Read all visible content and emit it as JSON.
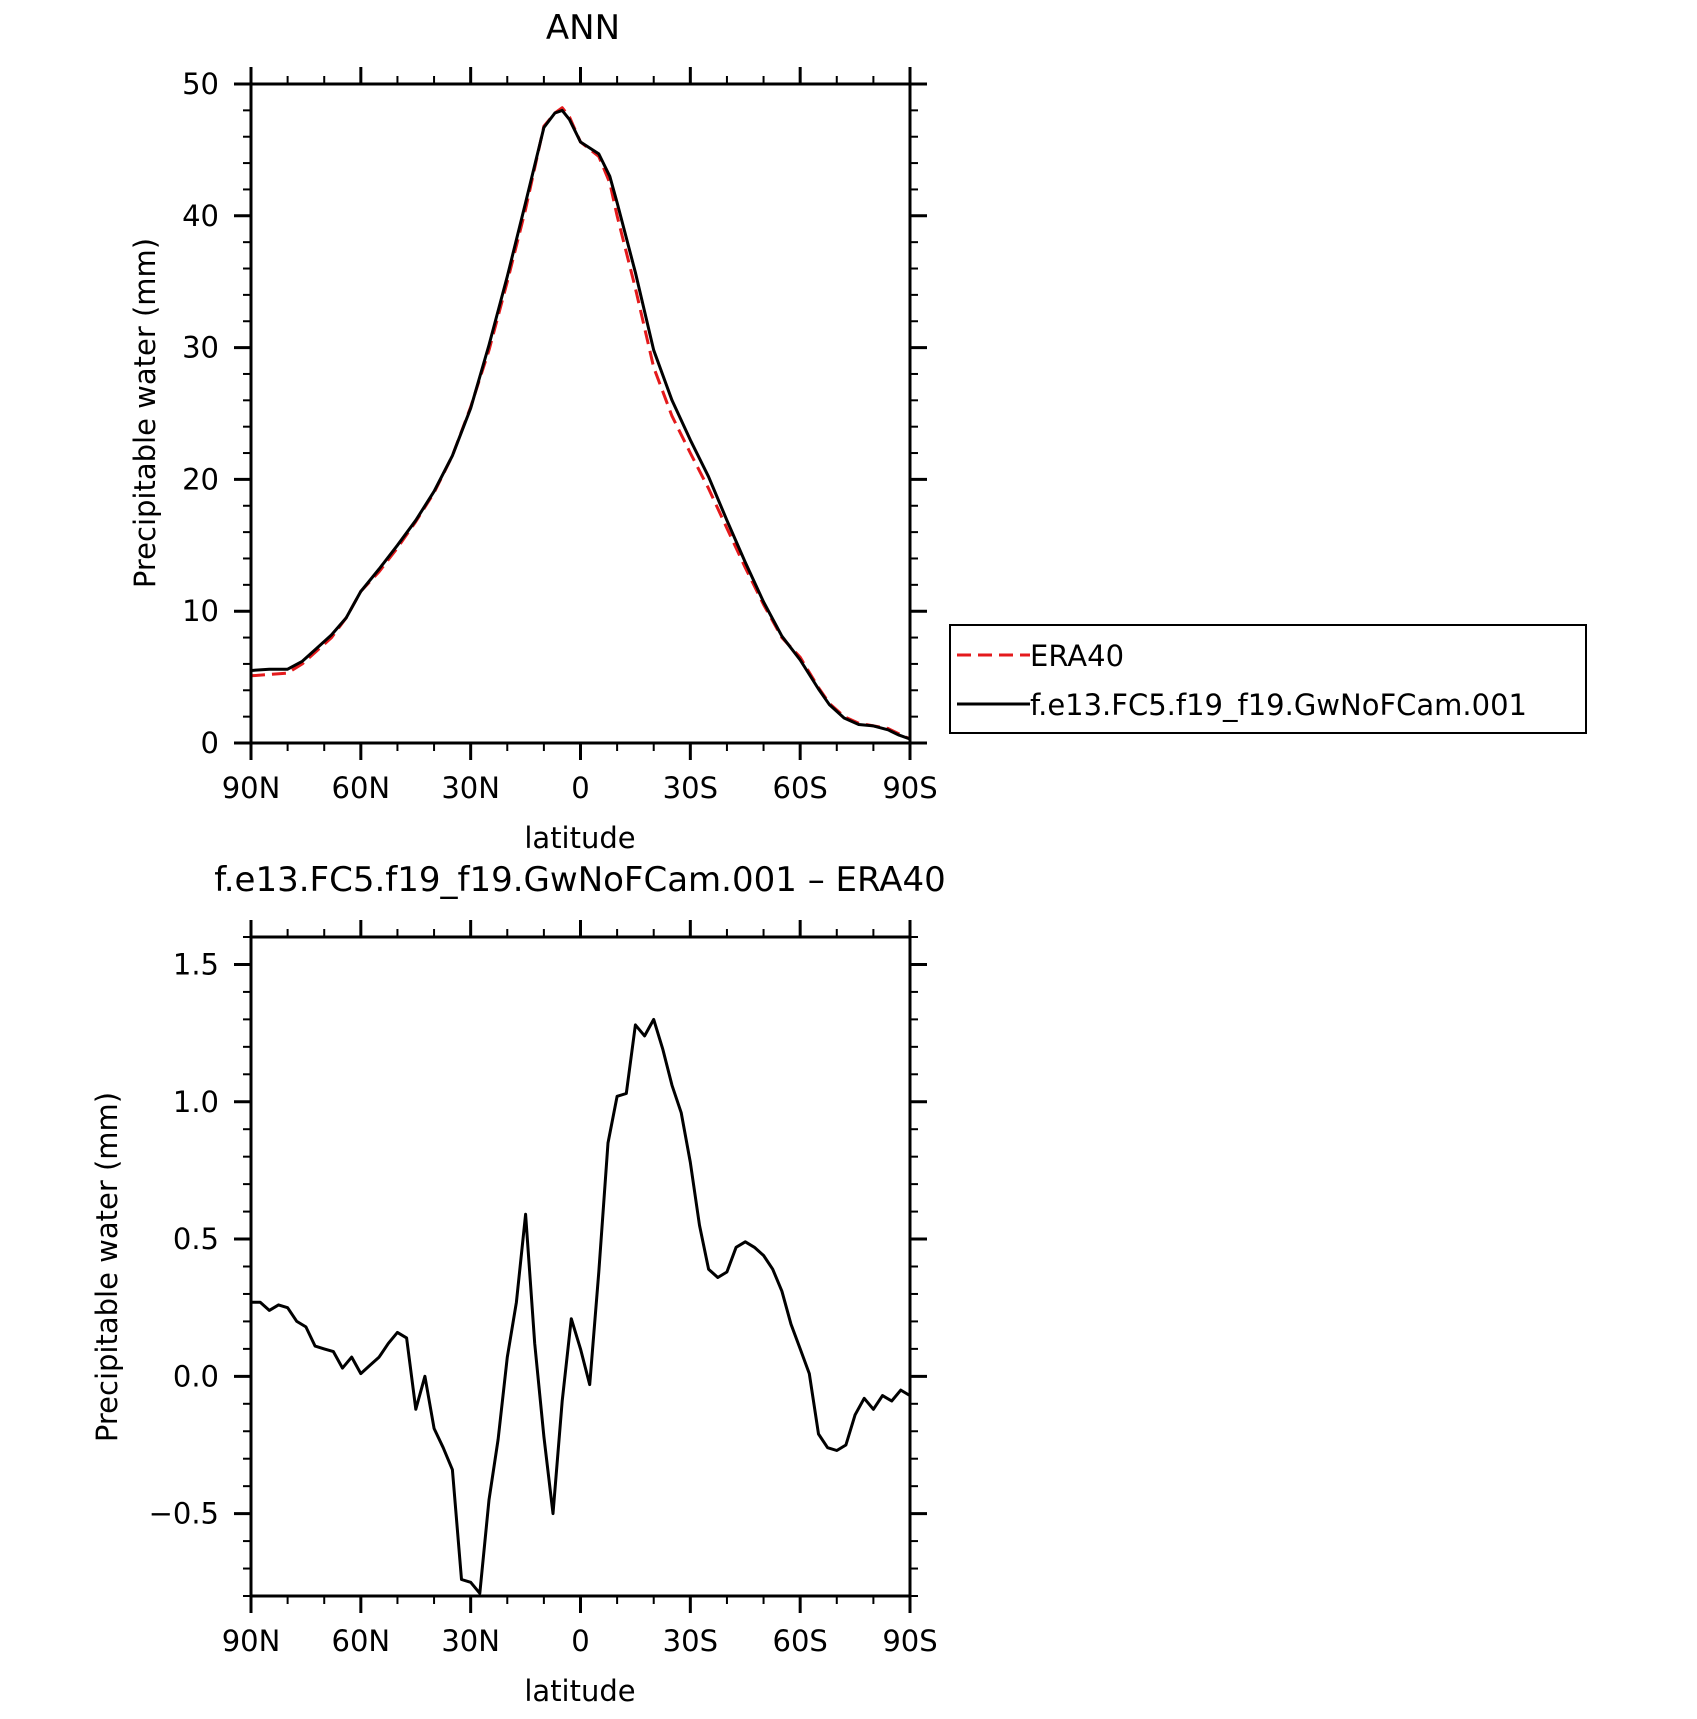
{
  "chart_data": [
    {
      "type": "line",
      "title": "ANN",
      "xlabel": "latitude",
      "ylabel": "Precipitable water (mm)",
      "xlim": [
        90,
        -90
      ],
      "ylim": [
        0,
        50
      ],
      "x_ticks": [
        {
          "value": 90,
          "label": "90N"
        },
        {
          "value": 60,
          "label": "60N"
        },
        {
          "value": 30,
          "label": "30N"
        },
        {
          "value": 0,
          "label": "0"
        },
        {
          "value": -30,
          "label": "30S"
        },
        {
          "value": -60,
          "label": "60S"
        },
        {
          "value": -90,
          "label": "90S"
        }
      ],
      "y_ticks": [
        {
          "value": 0,
          "label": "0"
        },
        {
          "value": 10,
          "label": "10"
        },
        {
          "value": 20,
          "label": "20"
        },
        {
          "value": 30,
          "label": "30"
        },
        {
          "value": 40,
          "label": "40"
        },
        {
          "value": 50,
          "label": "50"
        }
      ],
      "legend": {
        "position": "right",
        "entries": [
          "ERA40",
          "f.e13.FC5.f19_f19.GwNoFCam.001"
        ]
      },
      "series": [
        {
          "name": "ERA40",
          "color": "#e41a1c",
          "dash": true,
          "x": [
            90,
            85,
            80,
            76,
            72,
            68,
            64,
            60,
            55,
            50,
            45,
            40,
            35,
            30,
            25,
            20,
            15,
            10,
            7,
            5,
            3,
            0,
            -5,
            -8,
            -10,
            -15,
            -20,
            -25,
            -30,
            -35,
            -40,
            -45,
            -50,
            -55,
            -60,
            -65,
            -68,
            -72,
            -76,
            -80,
            -84,
            -87,
            -90
          ],
          "values": [
            5.1,
            5.2,
            5.3,
            6.0,
            7.0,
            8.0,
            9.5,
            11.5,
            13.0,
            14.8,
            16.8,
            19.0,
            21.8,
            25.5,
            29.8,
            35.0,
            40.5,
            46.8,
            47.8,
            48.2,
            47.5,
            45.6,
            44.5,
            42.5,
            40.0,
            34.5,
            28.5,
            24.8,
            22.0,
            19.3,
            16.3,
            13.3,
            10.5,
            8.0,
            6.5,
            4.2,
            3.0,
            2.0,
            1.5,
            1.3,
            1.1,
            0.7,
            0.3
          ]
        },
        {
          "name": "f.e13.FC5.f19_f19.GwNoFCam.001",
          "color": "#000000",
          "dash": false,
          "x": [
            90,
            85,
            80,
            76,
            72,
            68,
            64,
            60,
            55,
            50,
            45,
            40,
            35,
            30,
            25,
            20,
            15,
            10,
            7,
            5,
            3,
            0,
            -5,
            -8,
            -10,
            -15,
            -20,
            -25,
            -30,
            -35,
            -40,
            -45,
            -50,
            -55,
            -60,
            -65,
            -68,
            -72,
            -76,
            -80,
            -84,
            -87,
            -90
          ],
          "values": [
            5.5,
            5.6,
            5.6,
            6.2,
            7.2,
            8.2,
            9.5,
            11.5,
            13.2,
            15.0,
            16.9,
            19.1,
            21.8,
            25.4,
            30.2,
            35.4,
            41.0,
            46.7,
            47.8,
            48.0,
            47.3,
            45.6,
            44.7,
            43.0,
            41.0,
            35.7,
            29.8,
            26.0,
            23.0,
            20.2,
            16.9,
            13.7,
            10.7,
            8.1,
            6.3,
            4.1,
            2.9,
            1.9,
            1.4,
            1.3,
            1.0,
            0.6,
            0.3
          ]
        }
      ]
    },
    {
      "type": "line",
      "title": "f.e13.FC5.f19_f19.GwNoFCam.001 – ERA40",
      "xlabel": "latitude",
      "ylabel": "Precipitable water (mm)",
      "xlim": [
        90,
        -90
      ],
      "ylim": [
        -0.8,
        1.6
      ],
      "x_ticks": [
        {
          "value": 90,
          "label": "90N"
        },
        {
          "value": 60,
          "label": "60N"
        },
        {
          "value": 30,
          "label": "30N"
        },
        {
          "value": 0,
          "label": "0"
        },
        {
          "value": -30,
          "label": "30S"
        },
        {
          "value": -60,
          "label": "60S"
        },
        {
          "value": -90,
          "label": "90S"
        }
      ],
      "y_ticks": [
        {
          "value": -0.5,
          "label": "−0.5"
        },
        {
          "value": 0,
          "label": "0.0"
        },
        {
          "value": 0.5,
          "label": "0.5"
        },
        {
          "value": 1,
          "label": "1.0"
        },
        {
          "value": 1.5,
          "label": "1.5"
        }
      ],
      "series": [
        {
          "color": "#000000",
          "dash": false,
          "x": [
            90,
            87.5,
            85,
            82.5,
            80,
            77.5,
            75,
            72.5,
            70,
            67.5,
            65,
            62.5,
            60,
            57.5,
            55,
            52.5,
            50,
            47.5,
            45,
            42.5,
            40,
            37.5,
            35,
            32.5,
            30,
            27.5,
            25,
            22.5,
            20,
            17.5,
            15,
            12.5,
            10,
            7.5,
            5,
            2.5,
            0,
            -2.5,
            -5,
            -7.5,
            -10,
            -12.5,
            -15,
            -17.5,
            -20,
            -22.5,
            -25,
            -27.5,
            -30,
            -32.5,
            -35,
            -37.5,
            -40,
            -42.5,
            -45,
            -47.5,
            -50,
            -52.5,
            -55,
            -57.5,
            -60,
            -62.5,
            -65,
            -67.5,
            -70,
            -72.5,
            -75,
            -77.5,
            -80,
            -82.5,
            -85,
            -87.5,
            -90
          ],
          "values": [
            0.27,
            0.27,
            0.24,
            0.26,
            0.25,
            0.2,
            0.18,
            0.11,
            0.1,
            0.09,
            0.03,
            0.07,
            0.01,
            0.04,
            0.07,
            0.12,
            0.16,
            0.14,
            -0.12,
            0.0,
            -0.19,
            -0.26,
            -0.34,
            -0.74,
            -0.75,
            -0.79,
            -0.45,
            -0.23,
            0.07,
            0.27,
            0.59,
            0.12,
            -0.22,
            -0.5,
            -0.09,
            0.21,
            0.1,
            -0.03,
            0.38,
            0.85,
            1.02,
            1.03,
            1.28,
            1.24,
            1.3,
            1.19,
            1.06,
            0.96,
            0.78,
            0.55,
            0.39,
            0.36,
            0.38,
            0.47,
            0.49,
            0.47,
            0.44,
            0.39,
            0.31,
            0.19,
            0.1,
            0.01,
            -0.21,
            -0.26,
            -0.27,
            -0.25,
            -0.14,
            -0.08,
            -0.12,
            -0.07,
            -0.09,
            -0.05,
            -0.07
          ]
        }
      ]
    }
  ]
}
